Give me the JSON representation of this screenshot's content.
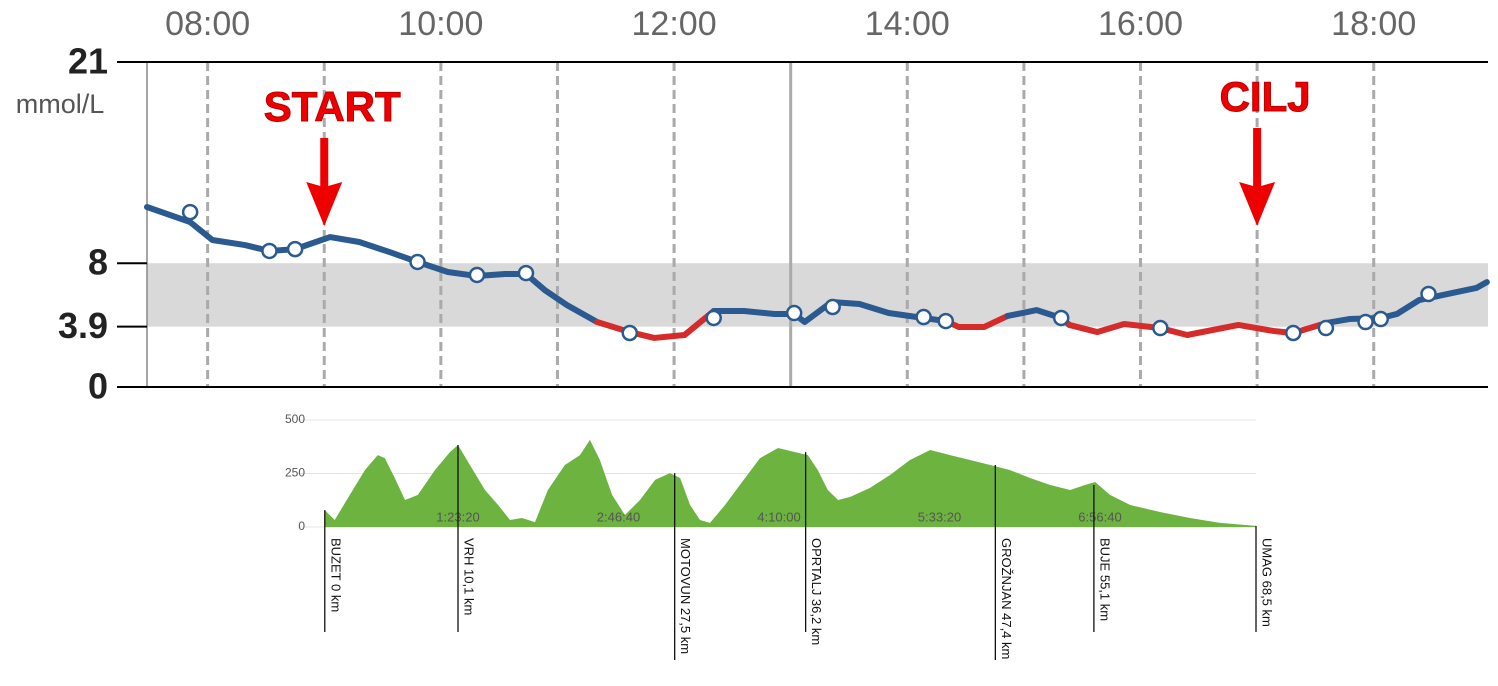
{
  "chart_data": [
    {
      "type": "line",
      "ylabel": "mmol/L",
      "xlim": [
        7.48,
        18.98
      ],
      "xticks": [
        {
          "value": 8,
          "label": "08:00"
        },
        {
          "value": 10,
          "label": "10:00"
        },
        {
          "value": 12,
          "label": "12:00"
        },
        {
          "value": 14,
          "label": "14:00"
        },
        {
          "value": 16,
          "label": "16:00"
        },
        {
          "value": 18,
          "label": "18:00"
        }
      ],
      "minor_xticks": [
        9,
        11,
        13,
        15,
        17
      ],
      "ylim": [
        0,
        21
      ],
      "yticks": [
        0,
        3.9,
        8,
        21
      ],
      "target_range": [
        3.9,
        8
      ],
      "band_color": "#d9d9d9",
      "color": "#2a5a8f",
      "low_color": "#d62b2b",
      "grid": true,
      "x": [
        7.48,
        7.85,
        8.04,
        8.32,
        8.53,
        8.75,
        9.05,
        9.3,
        9.56,
        9.8,
        10.06,
        10.31,
        10.55,
        10.73,
        10.89,
        11.08,
        11.34,
        11.62,
        11.83,
        12.09,
        12.34,
        12.6,
        12.86,
        13.03,
        13.12,
        13.35,
        13.59,
        13.84,
        14.14,
        14.33,
        14.44,
        14.66,
        14.86,
        15.11,
        15.32,
        15.39,
        15.63,
        15.86,
        16.17,
        16.4,
        16.84,
        17.14,
        17.31,
        17.59,
        17.79,
        18.06,
        18.2,
        18.39,
        18.67,
        18.88,
        18.97
      ],
      "values": [
        11.63,
        10.66,
        9.5,
        9.17,
        8.79,
        8.91,
        9.69,
        9.37,
        8.72,
        8.08,
        7.43,
        7.17,
        7.3,
        7.3,
        6.27,
        5.3,
        4.2,
        3.55,
        3.17,
        3.36,
        4.91,
        4.91,
        4.72,
        4.72,
        4.2,
        5.49,
        5.36,
        4.78,
        4.46,
        4.26,
        3.88,
        3.88,
        4.59,
        4.97,
        4.46,
        4.01,
        3.55,
        4.07,
        3.81,
        3.36,
        4.01,
        3.62,
        3.49,
        4.13,
        4.39,
        4.46,
        4.72,
        5.62,
        6.07,
        6.4,
        6.78
      ],
      "markers": {
        "x": [
          7.85,
          8.53,
          8.75,
          9.8,
          10.31,
          10.73,
          11.62,
          12.34,
          13.03,
          13.36,
          14.14,
          14.33,
          15.32,
          16.17,
          17.31,
          17.59,
          17.93,
          18.06,
          18.47
        ],
        "values": [
          11.3,
          8.79,
          8.91,
          8.08,
          7.24,
          7.36,
          3.49,
          4.46,
          4.78,
          5.17,
          4.52,
          4.26,
          4.46,
          3.81,
          3.49,
          3.81,
          4.2,
          4.39,
          6.01
        ]
      },
      "annotations": [
        {
          "text": "START",
          "x": 9
        },
        {
          "text": "CILJ",
          "x": 17
        }
      ]
    },
    {
      "type": "area",
      "color": "#6db33f",
      "xlim": [
        0,
        29860
      ],
      "xticks": [
        {
          "value": 5000,
          "label": "1:23:20"
        },
        {
          "value": 10000,
          "label": "2:46:40"
        },
        {
          "value": 15000,
          "label": "4:10:00"
        },
        {
          "value": 20000,
          "label": "5:33:20"
        },
        {
          "value": 25000,
          "label": "6:56:40"
        }
      ],
      "ylim": [
        0,
        500
      ],
      "yticks": [
        0,
        250,
        500
      ],
      "grid": true,
      "x": [
        850,
        1160,
        1630,
        2100,
        2500,
        2720,
        3030,
        3350,
        3750,
        4280,
        4750,
        5000,
        5370,
        5840,
        6250,
        6620,
        6990,
        7400,
        7800,
        8330,
        8800,
        9110,
        9420,
        9800,
        10200,
        10670,
        11140,
        11600,
        11920,
        12230,
        12540,
        12850,
        13320,
        13780,
        14410,
        14970,
        15500,
        15900,
        16210,
        16520,
        16840,
        17210,
        17830,
        18460,
        19080,
        19710,
        20330,
        20950,
        21580,
        22200,
        22820,
        23450,
        24070,
        24530,
        24850,
        25310,
        25940,
        26870,
        27800,
        28740,
        29860
      ],
      "values": [
        79,
        33,
        150,
        266,
        336,
        322,
        229,
        126,
        150,
        266,
        350,
        383,
        290,
        173,
        103,
        33,
        42,
        23,
        173,
        290,
        336,
        407,
        313,
        150,
        56,
        126,
        220,
        252,
        229,
        103,
        33,
        19,
        103,
        196,
        322,
        369,
        350,
        336,
        266,
        173,
        126,
        140,
        182,
        243,
        313,
        360,
        336,
        313,
        290,
        266,
        229,
        196,
        173,
        196,
        210,
        150,
        103,
        70,
        42,
        19,
        5
      ],
      "stops": [
        {
          "label": "BUZET 0 km",
          "x": 850
        },
        {
          "label": "VRH 10,1 km",
          "x": 5000
        },
        {
          "label": "MOTOVUN 27,5 km",
          "x": 11750
        },
        {
          "label": "OPRTALJ 36,2 km",
          "x": 15830
        },
        {
          "label": "GROŽNJAN 47,4 km",
          "x": 21740
        },
        {
          "label": "BUJE 55,1 km",
          "x": 24810
        },
        {
          "label": "UMAG 68,5 km",
          "x": 29860
        }
      ]
    }
  ]
}
